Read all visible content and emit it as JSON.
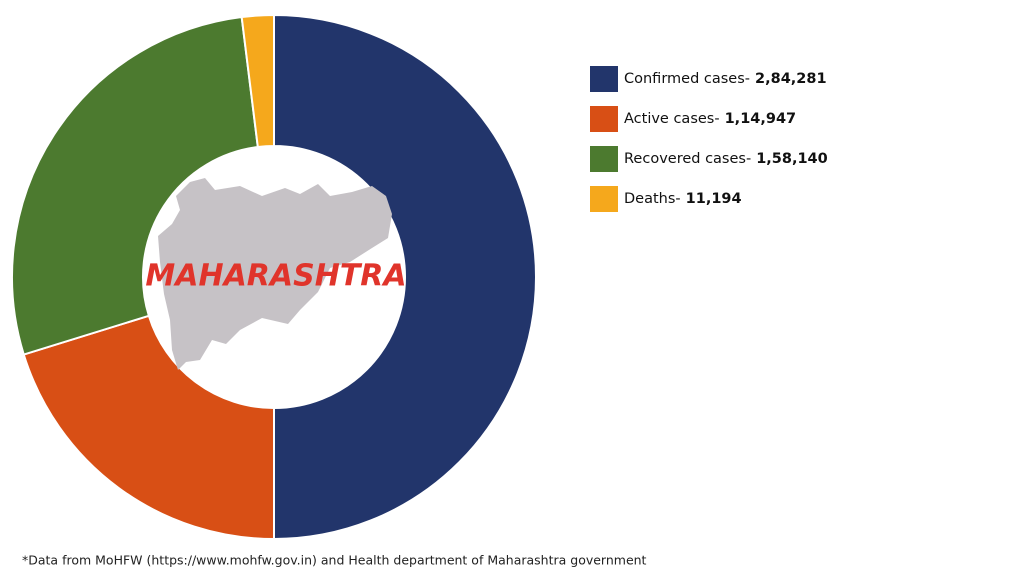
{
  "chart_data": {
    "type": "donut",
    "categories": [
      "Confirmed cases-",
      "Active cases-",
      "Recovered cases-",
      "Deaths-"
    ],
    "values": [
      284281,
      114947,
      158140,
      11194
    ],
    "value_labels": [
      "2,84,281",
      "1,14,947",
      "1,58,140",
      "11,194"
    ],
    "colors": [
      "#22356b",
      "#d84f15",
      "#4c7a2f",
      "#f5a81c"
    ],
    "center_label": "MAHARASHTRA",
    "note": "*Data from MoHFW (https://www.mohfw.gov.in) and Health department of Maharashtra government"
  }
}
